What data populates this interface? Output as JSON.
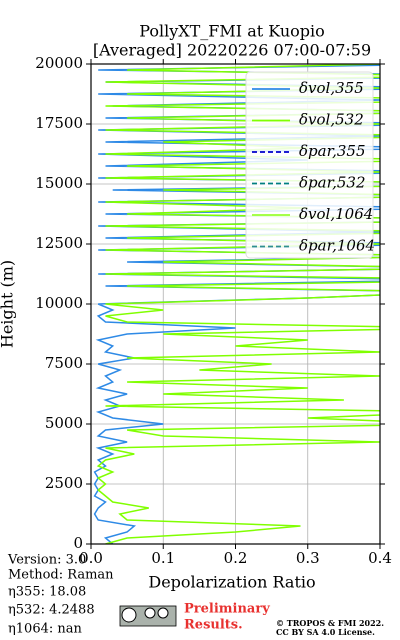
{
  "chart_data": {
    "type": "profile",
    "title": [
      "PollyXT_FMI at Kuopio",
      "[Averaged] 20220226 07:00-07:59"
    ],
    "xlabel": "Depolarization Ratio",
    "ylabel": "Height (m)",
    "xlim": [
      0,
      0.4
    ],
    "xticks": [
      {
        "value": 0,
        "label": "0.0"
      },
      0.1,
      0.2,
      0.3,
      0.4
    ],
    "ylim": [
      0,
      20000
    ],
    "yticks": [
      0,
      2500,
      5000,
      7500,
      10000,
      12500,
      15000,
      17500,
      20000
    ],
    "grid": true,
    "legend": "upper right",
    "y": [
      0,
      250,
      500,
      750,
      1000,
      1250,
      1500,
      1750,
      2000,
      2250,
      2500,
      2750,
      3000,
      3250,
      3500,
      3750,
      4000,
      4250,
      4500,
      4750,
      5000,
      5250,
      5500,
      5750,
      6000,
      6250,
      6500,
      6750,
      7000,
      7250,
      7500,
      7750,
      8000,
      8250,
      8500,
      8750,
      9000,
      9250,
      9500,
      9750,
      10000,
      10250,
      10500,
      10750,
      11000,
      11250,
      11500,
      11750,
      12000,
      12250,
      12500,
      12750,
      13000,
      13250,
      13500,
      13750,
      14000,
      14250,
      14500,
      14750,
      15000,
      15250,
      15500,
      15750,
      16000,
      16250,
      16500,
      16750,
      17000,
      17250,
      17500,
      17750,
      18000,
      18250,
      18500,
      18750,
      19000,
      19250,
      19500,
      19750,
      20000
    ],
    "series": [
      {
        "name": "δvol,355",
        "color": "#2e8ae6",
        "linestyle": "solid",
        "values": [
          0.03,
          0.02,
          0.05,
          0.06,
          0.01,
          0.005,
          0.01,
          0.02,
          0.005,
          0.01,
          0.005,
          0.01,
          0.005,
          0.02,
          0.01,
          0.03,
          0.01,
          0.05,
          0.01,
          0.02,
          0.1,
          0.03,
          0.01,
          0.04,
          0.02,
          0.05,
          0.01,
          0.03,
          0.02,
          0.04,
          0.01,
          0.06,
          0.02,
          0.03,
          0.01,
          0.05,
          0.2,
          0.02,
          0.01,
          0.03,
          0.01,
          0.3,
          0.5,
          0.02,
          0.5,
          0.01,
          0.5,
          0.05,
          0.5,
          0.01,
          0.5,
          0.02,
          0.4,
          0.01,
          0.6,
          0.02,
          0.5,
          0.01,
          0.5,
          0.03,
          0.6,
          0.01,
          0.5,
          0.02,
          0.3,
          0.01,
          0.5,
          0.02,
          0.4,
          0.01,
          0.5,
          0.02,
          0.5,
          0.03,
          0.4,
          0.01,
          0.5,
          0.02,
          0.6,
          0.01,
          0.5
        ]
      },
      {
        "name": "δvol,532",
        "color": "#80ff00",
        "linestyle": "solid",
        "values": [
          0.02,
          0.05,
          0.2,
          0.29,
          0.05,
          0.04,
          0.08,
          0.03,
          0.02,
          0.01,
          0.02,
          0.01,
          0.03,
          0.01,
          0.02,
          0.06,
          0.02,
          0.4,
          0.1,
          0.05,
          0.5,
          0.3,
          0.5,
          0.02,
          0.35,
          0.1,
          0.3,
          0.05,
          0.4,
          0.15,
          0.25,
          0.05,
          0.4,
          0.2,
          0.3,
          0.1,
          0.5,
          0.05,
          0.02,
          0.1,
          0.02,
          0.3,
          0.5,
          0.05,
          0.6,
          0.02,
          0.5,
          0.1,
          0.5,
          0.02,
          0.4,
          0.05,
          0.5,
          0.02,
          0.6,
          0.05,
          0.3,
          0.02,
          0.5,
          0.1,
          0.6,
          0.02,
          0.4,
          0.05,
          0.5,
          0.02,
          0.3,
          0.1,
          0.5,
          0.02,
          0.4,
          0.05,
          0.5,
          0.02,
          0.6,
          0.05,
          0.4,
          0.02,
          0.5,
          0.05,
          0.4
        ]
      },
      {
        "name": "δpar,355",
        "color": "#0000cc",
        "linestyle": "dashed",
        "values": [
          null,
          null,
          null,
          null,
          null,
          null,
          null,
          null,
          null,
          null,
          null,
          null,
          null,
          null,
          null,
          null,
          null,
          null,
          null,
          null,
          null,
          null,
          null,
          null,
          null,
          null,
          null,
          null,
          null,
          null,
          null,
          null,
          null,
          null,
          null,
          null,
          null,
          null,
          null,
          null,
          null,
          null,
          null,
          null,
          null,
          null,
          null,
          null,
          null,
          null,
          null,
          null,
          null,
          null,
          null,
          null,
          null,
          null,
          null,
          null,
          null,
          null,
          null,
          null,
          null,
          null,
          null,
          null,
          null,
          null,
          null,
          null,
          null,
          null,
          null,
          null,
          null,
          null,
          null,
          null,
          null
        ]
      },
      {
        "name": "δpar,532",
        "color": "#008080",
        "linestyle": "dashed",
        "values": [
          null,
          null,
          null,
          null,
          null,
          null,
          null,
          null,
          null,
          null,
          null,
          null,
          null,
          null,
          null,
          null,
          null,
          null,
          null,
          null,
          null,
          null,
          null,
          null,
          null,
          null,
          null,
          null,
          null,
          null,
          null,
          null,
          null,
          null,
          null,
          null,
          null,
          null,
          null,
          null,
          null,
          null,
          null,
          null,
          null,
          null,
          null,
          null,
          null,
          null,
          null,
          null,
          null,
          null,
          null,
          null,
          null,
          null,
          null,
          null,
          null,
          null,
          null,
          null,
          null,
          null,
          null,
          null,
          null,
          null,
          null,
          null,
          null,
          null,
          null,
          null,
          null,
          null,
          null,
          null,
          null
        ]
      },
      {
        "name": "δvol,1064",
        "color": "#99ff33",
        "linestyle": "solid",
        "values": [
          null,
          null,
          null,
          null,
          null,
          null,
          null,
          null,
          null,
          null,
          null,
          null,
          null,
          null,
          null,
          null,
          null,
          null,
          null,
          null,
          null,
          null,
          null,
          null,
          null,
          null,
          null,
          null,
          null,
          null,
          null,
          null,
          null,
          null,
          null,
          null,
          null,
          null,
          null,
          null,
          null,
          null,
          null,
          null,
          null,
          null,
          null,
          null,
          null,
          null,
          null,
          null,
          null,
          null,
          null,
          null,
          null,
          null,
          null,
          null,
          null,
          null,
          null,
          null,
          null,
          null,
          null,
          null,
          null,
          null,
          null,
          null,
          null,
          null,
          null,
          null,
          null,
          null,
          null,
          null,
          null
        ]
      },
      {
        "name": "δpar,1064",
        "color": "#2f8f8f",
        "linestyle": "dashed",
        "values": [
          null,
          null,
          null,
          null,
          null,
          null,
          null,
          null,
          null,
          null,
          null,
          null,
          null,
          null,
          null,
          null,
          null,
          null,
          null,
          null,
          null,
          null,
          null,
          null,
          null,
          null,
          null,
          null,
          null,
          null,
          null,
          null,
          null,
          null,
          null,
          null,
          null,
          null,
          null,
          null,
          null,
          null,
          null,
          null,
          null,
          null,
          null,
          null,
          null,
          null,
          null,
          null,
          null,
          null,
          null,
          null,
          null,
          null,
          null,
          null,
          null,
          null,
          null,
          null,
          null,
          null,
          null,
          null,
          null,
          null,
          null,
          null,
          null,
          null,
          null,
          null,
          null,
          null,
          null,
          null,
          null
        ]
      }
    ],
    "annotations": [
      "Version: 3.0",
      "Method: Raman",
      "η355:  18.08",
      "η532: 4.2488",
      "η1064:    nan"
    ],
    "badge": [
      "Preliminary",
      "Results."
    ],
    "license": [
      "© TROPOS & FMI 2022.",
      "CC BY SA 4.0 License."
    ]
  }
}
